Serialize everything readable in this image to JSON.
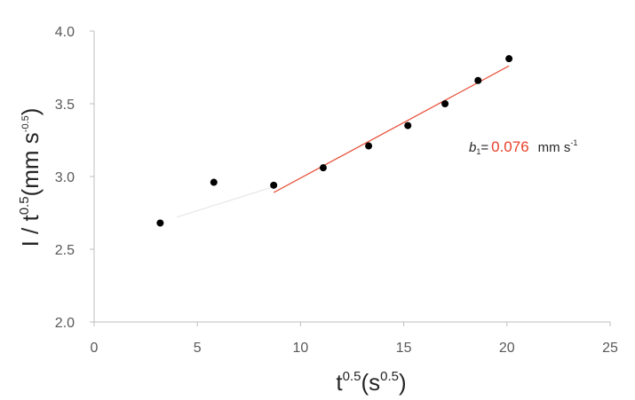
{
  "chart_data": {
    "type": "scatter",
    "title": "",
    "xlabel": {
      "base": "t",
      "sup": "0.5",
      "unit_base": "s",
      "unit_sup": "0.5"
    },
    "ylabel": {
      "base": "I / t",
      "sup": "0.5",
      "unit_base": "mm s",
      "unit_sup": "-0.5"
    },
    "xlim": [
      0,
      25
    ],
    "ylim": [
      2.0,
      4.0
    ],
    "xticks": [
      "0",
      "5",
      "10",
      "15",
      "20",
      "25"
    ],
    "yticks": [
      "2.0",
      "2.5",
      "3.0",
      "3.5",
      "4.0"
    ],
    "grid": false,
    "series": [
      {
        "x": [
          3.2,
          5.8,
          8.7,
          11.1,
          13.3,
          15.2,
          17.0,
          18.6,
          20.1
        ],
        "y": [
          2.68,
          2.96,
          2.94,
          3.06,
          3.21,
          3.35,
          3.5,
          3.66,
          3.81
        ],
        "color": "#000000"
      }
    ],
    "fit_lines": [
      {
        "x": [
          4.0,
          8.7
        ],
        "y": [
          2.72,
          2.93
        ],
        "color": "#e8e8e8"
      },
      {
        "x": [
          8.7,
          20.1
        ],
        "y": [
          2.89,
          3.76
        ],
        "color": "#e8553f"
      }
    ],
    "annotation": {
      "symbol": "b",
      "subscript": "1",
      "equals": "=",
      "value": "0.076",
      "value_color": "#e8402a",
      "unit_base": "mm s",
      "unit_sup": "-1"
    }
  }
}
